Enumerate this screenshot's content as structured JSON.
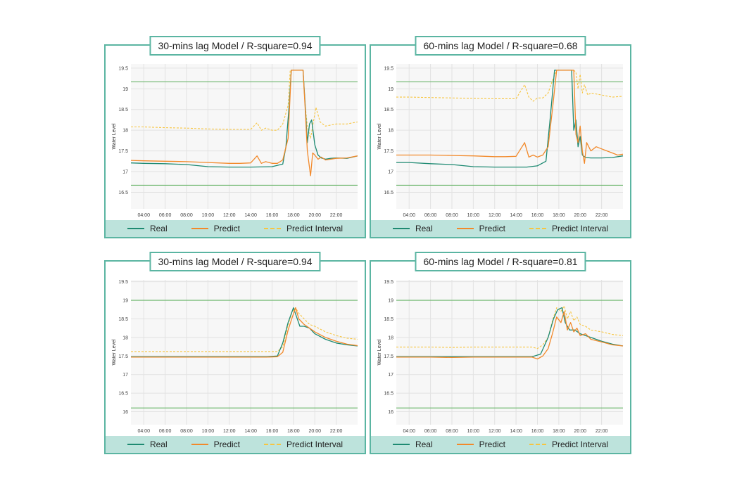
{
  "colors": {
    "real": "#1e8a72",
    "predict": "#f2892a",
    "interval": "#f7c540",
    "threshold": "#6ab56a",
    "panel_border": "#5bb5a2",
    "legend_bg": "#bde3dc"
  },
  "legend": {
    "real": "Real",
    "predict": "Predict",
    "interval": "Predict Interval"
  },
  "chart_data": [
    {
      "type": "line",
      "title": "30-mins lag Model / R-square=0.94",
      "ylabel": "Water Level",
      "xlabel": "",
      "x_ticks": [
        "04:00",
        "06:00",
        "08:00",
        "10:00",
        "12:00",
        "14:00",
        "16:00",
        "18:00",
        "20:00",
        "22:00"
      ],
      "y_ticks": [
        "16.5",
        "17",
        "17.5",
        "18",
        "18.5",
        "19",
        "19.5"
      ],
      "ylim": [
        16.1,
        19.6
      ],
      "xlim": [
        2.8,
        24.0
      ],
      "thresholds": [
        19.17,
        16.67
      ],
      "series": [
        {
          "name": "Real",
          "x": [
            2.8,
            4,
            6,
            8,
            10,
            12,
            14,
            16,
            17,
            17.3,
            17.6,
            17.8,
            18.9,
            19.1,
            19.3,
            19.5,
            19.7,
            20,
            20.3,
            20.6,
            21,
            21.5,
            22,
            23,
            24
          ],
          "y": [
            17.21,
            17.2,
            17.19,
            17.17,
            17.12,
            17.11,
            17.11,
            17.12,
            17.18,
            17.6,
            18.6,
            19.45,
            19.45,
            18.6,
            17.7,
            18.15,
            18.25,
            17.65,
            17.4,
            17.33,
            17.3,
            17.32,
            17.33,
            17.32,
            17.38
          ]
        },
        {
          "name": "Predict",
          "x": [
            2.8,
            4,
            6,
            8,
            10,
            12,
            13,
            14,
            14.6,
            15,
            15.4,
            16,
            16.5,
            17,
            17.5,
            17.8,
            18.9,
            19.1,
            19.3,
            19.6,
            19.8,
            20,
            20.3,
            20.6,
            21,
            21.5,
            22,
            23,
            24
          ],
          "y": [
            17.27,
            17.26,
            17.25,
            17.24,
            17.22,
            17.2,
            17.2,
            17.21,
            17.38,
            17.2,
            17.24,
            17.2,
            17.2,
            17.28,
            17.8,
            19.45,
            19.45,
            18.5,
            17.5,
            16.9,
            17.45,
            17.4,
            17.3,
            17.35,
            17.28,
            17.3,
            17.32,
            17.33,
            17.38
          ]
        },
        {
          "name": "Predict Interval",
          "x": [
            2.8,
            4,
            6,
            8,
            10,
            12,
            14,
            14.6,
            15,
            15.4,
            16,
            16.5,
            17,
            17.5,
            17.7,
            18.9,
            19.1,
            19.3,
            19.6,
            19.8,
            20.1,
            20.5,
            21,
            22,
            23,
            24
          ],
          "y": [
            18.08,
            18.08,
            18.06,
            18.05,
            18.03,
            18.02,
            18.02,
            18.18,
            18.0,
            18.05,
            18.0,
            18.0,
            18.15,
            18.6,
            19.45,
            19.45,
            18.6,
            18.1,
            17.8,
            18.1,
            18.55,
            18.2,
            18.1,
            18.15,
            18.15,
            18.2
          ]
        }
      ]
    },
    {
      "type": "line",
      "title": "60-mins lag Model / R-square=0.68",
      "ylabel": "Water Level",
      "xlabel": "",
      "x_ticks": [
        "04:00",
        "06:00",
        "08:00",
        "10:00",
        "12:00",
        "14:00",
        "16:00",
        "18:00",
        "20:00",
        "22:00"
      ],
      "y_ticks": [
        "16.5",
        "17",
        "17.5",
        "18",
        "18.5",
        "19",
        "19.5"
      ],
      "ylim": [
        16.1,
        19.6
      ],
      "xlim": [
        2.8,
        24.0
      ],
      "thresholds": [
        19.17,
        16.67
      ],
      "series": [
        {
          "name": "Real",
          "x": [
            2.8,
            4,
            6,
            8,
            10,
            12,
            14,
            15,
            16,
            16.8,
            17.2,
            17.6,
            19.2,
            19.4,
            19.6,
            19.8,
            20,
            20.2,
            20.5,
            21,
            22,
            23,
            24
          ],
          "y": [
            17.22,
            17.22,
            17.19,
            17.17,
            17.12,
            17.11,
            17.11,
            17.11,
            17.14,
            17.25,
            18.3,
            19.45,
            19.45,
            18.0,
            18.25,
            17.6,
            17.85,
            17.4,
            17.34,
            17.33,
            17.33,
            17.34,
            17.38
          ]
        },
        {
          "name": "Predict",
          "x": [
            2.8,
            4,
            6,
            8,
            10,
            12,
            13,
            14,
            14.8,
            15.2,
            15.6,
            16,
            16.5,
            17,
            17.4,
            17.8,
            19.4,
            19.6,
            19.8,
            20,
            20.2,
            20.4,
            20.6,
            21,
            21.5,
            22,
            22.5,
            23,
            23.5,
            24
          ],
          "y": [
            17.4,
            17.4,
            17.4,
            17.39,
            17.38,
            17.36,
            17.36,
            17.37,
            17.7,
            17.35,
            17.4,
            17.35,
            17.4,
            17.6,
            18.5,
            19.45,
            19.45,
            17.9,
            17.7,
            18.1,
            17.5,
            17.2,
            17.7,
            17.5,
            17.6,
            17.55,
            17.5,
            17.45,
            17.4,
            17.42
          ]
        },
        {
          "name": "Predict Interval",
          "x": [
            2.8,
            4,
            6,
            8,
            10,
            12,
            14,
            14.8,
            15.2,
            15.6,
            16,
            16.5,
            17,
            17.4,
            17.8,
            19.4,
            19.6,
            19.8,
            20,
            20.2,
            20.4,
            20.7,
            21,
            22,
            23,
            24
          ],
          "y": [
            18.8,
            18.8,
            18.79,
            18.78,
            18.77,
            18.76,
            18.76,
            19.1,
            18.8,
            18.7,
            18.78,
            18.78,
            18.9,
            19.2,
            19.45,
            19.45,
            19.4,
            19.0,
            19.35,
            18.9,
            19.1,
            18.85,
            18.9,
            18.85,
            18.8,
            18.82
          ]
        }
      ]
    },
    {
      "type": "line",
      "title": "30-mins lag Model / R-square=0.94",
      "ylabel": "Water Level",
      "xlabel": "",
      "x_ticks": [
        "04:00",
        "06:00",
        "08:00",
        "10:00",
        "12:00",
        "14:00",
        "16:00",
        "18:00",
        "20:00",
        "22:00"
      ],
      "y_ticks": [
        "16",
        "16.5",
        "17",
        "17.5",
        "18",
        "18.5",
        "19",
        "19.5"
      ],
      "ylim": [
        15.65,
        19.55
      ],
      "xlim": [
        2.8,
        24.0
      ],
      "thresholds": [
        19.0,
        16.1
      ],
      "series": [
        {
          "name": "Real",
          "x": [
            2.8,
            4,
            6,
            8,
            10,
            12,
            14,
            15.5,
            16.5,
            17,
            17.5,
            18,
            18.3,
            18.6,
            19,
            19.5,
            20,
            21,
            22,
            23,
            24
          ],
          "y": [
            17.48,
            17.48,
            17.48,
            17.48,
            17.48,
            17.48,
            17.48,
            17.48,
            17.5,
            17.85,
            18.4,
            18.8,
            18.55,
            18.3,
            18.3,
            18.25,
            18.1,
            17.95,
            17.85,
            17.8,
            17.77
          ]
        },
        {
          "name": "Predict",
          "x": [
            2.8,
            4,
            6,
            8,
            10,
            12,
            14,
            15.5,
            16.5,
            17,
            17.5,
            17.9,
            18.2,
            18.5,
            19,
            19.5,
            20,
            21,
            22,
            23,
            24
          ],
          "y": [
            17.47,
            17.47,
            17.47,
            17.47,
            17.47,
            17.47,
            17.47,
            17.47,
            17.48,
            17.6,
            18.2,
            18.55,
            18.8,
            18.5,
            18.35,
            18.25,
            18.15,
            18.0,
            17.9,
            17.82,
            17.78
          ]
        },
        {
          "name": "Predict Interval",
          "x": [
            2.8,
            4,
            6,
            8,
            10,
            12,
            14,
            15.5,
            16.5,
            17,
            17.5,
            17.9,
            18.2,
            18.5,
            19,
            19.5,
            20,
            21,
            22,
            23,
            24
          ],
          "y": [
            17.62,
            17.62,
            17.62,
            17.62,
            17.62,
            17.62,
            17.62,
            17.62,
            17.62,
            17.75,
            18.35,
            18.7,
            18.8,
            18.65,
            18.5,
            18.35,
            18.3,
            18.15,
            18.05,
            17.98,
            17.95
          ]
        }
      ]
    },
    {
      "type": "line",
      "title": "60-mins lag Model / R-square=0.81",
      "ylabel": "Water Level",
      "xlabel": "",
      "x_ticks": [
        "04:00",
        "06:00",
        "08:00",
        "10:00",
        "12:00",
        "14:00",
        "16:00",
        "18:00",
        "20:00",
        "22:00"
      ],
      "y_ticks": [
        "16",
        "16.5",
        "17",
        "17.5",
        "18",
        "18.5",
        "19",
        "19.5"
      ],
      "ylim": [
        15.65,
        19.55
      ],
      "xlim": [
        2.8,
        24.0
      ],
      "thresholds": [
        19.0,
        16.1
      ],
      "series": [
        {
          "name": "Real",
          "x": [
            2.8,
            4,
            6,
            8,
            10,
            12,
            14,
            15.5,
            16.3,
            17,
            17.5,
            17.9,
            18.3,
            18.6,
            19,
            19.5,
            20,
            21,
            22,
            23,
            24
          ],
          "y": [
            17.48,
            17.48,
            17.48,
            17.48,
            17.48,
            17.48,
            17.48,
            17.48,
            17.55,
            18.0,
            18.5,
            18.75,
            18.8,
            18.4,
            18.2,
            18.2,
            18.1,
            18.0,
            17.9,
            17.82,
            17.77
          ]
        },
        {
          "name": "Predict",
          "x": [
            2.8,
            4,
            6,
            8,
            10,
            12,
            14,
            15.5,
            16,
            16.5,
            17,
            17.4,
            17.8,
            18.2,
            18.5,
            18.8,
            19.1,
            19.4,
            19.7,
            20,
            20.5,
            21,
            22,
            23,
            24
          ],
          "y": [
            17.47,
            17.47,
            17.47,
            17.46,
            17.47,
            17.47,
            17.47,
            17.47,
            17.42,
            17.5,
            17.7,
            18.1,
            18.55,
            18.4,
            18.7,
            18.2,
            18.4,
            18.15,
            18.25,
            18.05,
            18.1,
            17.95,
            17.88,
            17.8,
            17.77
          ]
        },
        {
          "name": "Predict Interval",
          "x": [
            2.8,
            4,
            6,
            8,
            10,
            12,
            14,
            15.5,
            16,
            16.5,
            17,
            17.4,
            17.8,
            18.2,
            18.5,
            18.8,
            19.1,
            19.4,
            19.7,
            20,
            20.5,
            21,
            22,
            23,
            24
          ],
          "y": [
            17.74,
            17.74,
            17.74,
            17.73,
            17.74,
            17.74,
            17.74,
            17.74,
            17.7,
            17.8,
            18.0,
            18.45,
            18.8,
            18.7,
            18.85,
            18.5,
            18.7,
            18.45,
            18.55,
            18.35,
            18.3,
            18.2,
            18.15,
            18.08,
            18.05
          ]
        }
      ]
    }
  ]
}
